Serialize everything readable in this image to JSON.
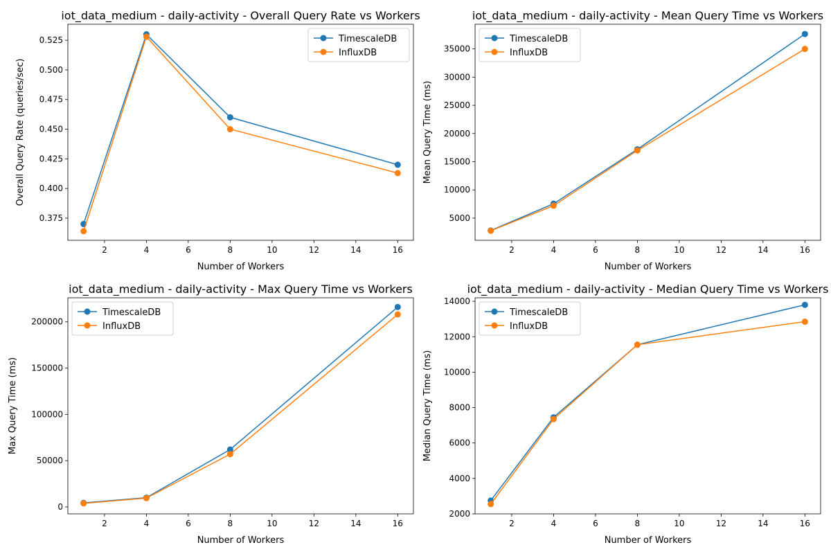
{
  "chart_data": [
    {
      "type": "line",
      "title": "iot_data_medium - daily-activity - Overall Query Rate vs Workers",
      "xlabel": "Number of Workers",
      "ylabel": "Overall Query Rate (queries/sec)",
      "x": [
        1,
        4,
        8,
        16
      ],
      "xlim": [
        0.25,
        16.75
      ],
      "ylim": [
        0.3563,
        0.5385
      ],
      "xticks": [
        2,
        4,
        6,
        8,
        10,
        12,
        14,
        16
      ],
      "yticks": [
        0.375,
        0.4,
        0.425,
        0.45,
        0.475,
        0.5,
        0.525
      ],
      "ytick_labels": [
        "0.375",
        "0.400",
        "0.425",
        "0.450",
        "0.475",
        "0.500",
        "0.525"
      ],
      "legend_position": "top-right",
      "grid": false,
      "series": [
        {
          "name": "TimescaleDB",
          "color": "#1f77b4",
          "values": [
            0.37,
            0.53,
            0.46,
            0.42
          ]
        },
        {
          "name": "InfluxDB",
          "color": "#ff7f0e",
          "values": [
            0.364,
            0.528,
            0.45,
            0.413
          ]
        }
      ]
    },
    {
      "type": "line",
      "title": "iot_data_medium - daily-activity - Mean Query Time vs Workers",
      "xlabel": "Number of Workers",
      "ylabel": "Mean Query Time (ms)",
      "x": [
        1,
        4,
        8,
        16
      ],
      "xlim": [
        0.25,
        16.75
      ],
      "ylim": [
        1060,
        39380
      ],
      "xticks": [
        2,
        4,
        6,
        8,
        10,
        12,
        14,
        16
      ],
      "yticks": [
        5000,
        10000,
        15000,
        20000,
        25000,
        30000,
        35000
      ],
      "ytick_labels": [
        "5000",
        "10000",
        "15000",
        "20000",
        "25000",
        "30000",
        "35000"
      ],
      "legend_position": "top-left",
      "grid": false,
      "series": [
        {
          "name": "TimescaleDB",
          "color": "#1f77b4",
          "values": [
            2800,
            7550,
            17200,
            37650
          ]
        },
        {
          "name": "InfluxDB",
          "color": "#ff7f0e",
          "values": [
            2750,
            7200,
            17000,
            35000
          ]
        }
      ]
    },
    {
      "type": "line",
      "title": "iot_data_medium - daily-activity - Max Query Time vs Workers",
      "xlabel": "Number of Workers",
      "ylabel": "Max Query Time (ms)",
      "x": [
        1,
        4,
        8,
        16
      ],
      "xlim": [
        0.25,
        16.75
      ],
      "ylim": [
        -7500,
        226000
      ],
      "xticks": [
        2,
        4,
        6,
        8,
        10,
        12,
        14,
        16
      ],
      "yticks": [
        0,
        50000,
        100000,
        150000,
        200000
      ],
      "ytick_labels": [
        "0",
        "50000",
        "100000",
        "150000",
        "200000"
      ],
      "legend_position": "top-left",
      "grid": false,
      "series": [
        {
          "name": "TimescaleDB",
          "color": "#1f77b4",
          "values": [
            4300,
            10000,
            62000,
            216000
          ]
        },
        {
          "name": "InfluxDB",
          "color": "#ff7f0e",
          "values": [
            3800,
            9500,
            57000,
            208000
          ]
        }
      ]
    },
    {
      "type": "line",
      "title": "iot_data_medium - daily-activity - Median Query Time vs Workers",
      "xlabel": "Number of Workers",
      "ylabel": "Median Query Time (ms)",
      "x": [
        1,
        4,
        8,
        16
      ],
      "xlim": [
        0.25,
        16.75
      ],
      "ylim": [
        2000,
        14200
      ],
      "xticks": [
        2,
        4,
        6,
        8,
        10,
        12,
        14,
        16
      ],
      "yticks": [
        2000,
        4000,
        6000,
        8000,
        10000,
        12000,
        14000
      ],
      "ytick_labels": [
        "2000",
        "4000",
        "6000",
        "8000",
        "10000",
        "12000",
        "14000"
      ],
      "legend_position": "top-left",
      "grid": false,
      "series": [
        {
          "name": "TimescaleDB",
          "color": "#1f77b4",
          "values": [
            2750,
            7450,
            11550,
            13800
          ]
        },
        {
          "name": "InfluxDB",
          "color": "#ff7f0e",
          "values": [
            2550,
            7350,
            11550,
            12850
          ]
        }
      ]
    }
  ]
}
